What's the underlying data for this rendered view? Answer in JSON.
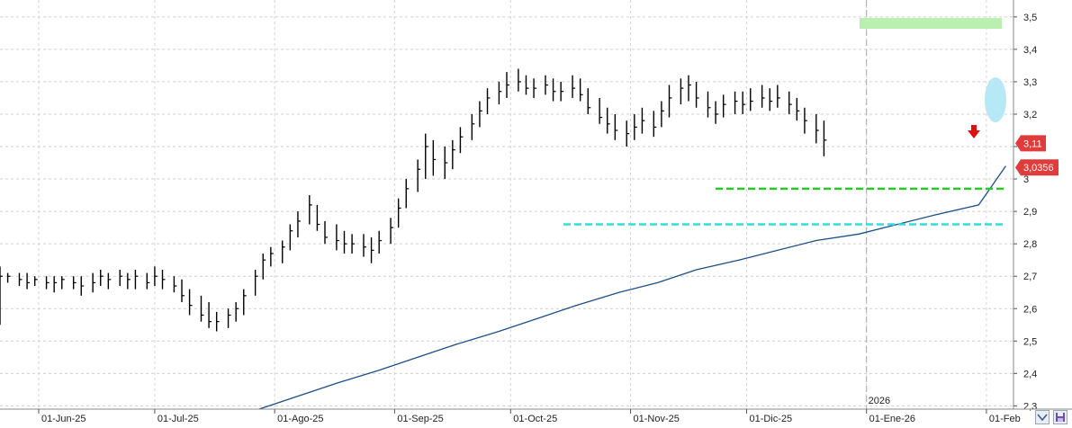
{
  "chart_data": {
    "type": "ohlc",
    "title": "",
    "xlabel": "",
    "ylabel": "",
    "ylim": [
      2.29,
      3.53
    ],
    "y_ticks": [
      "3,5",
      "3,4",
      "3,3",
      "3,2",
      "3,1",
      "3",
      "2,9",
      "2,8",
      "2,7",
      "2,6",
      "2,5",
      "2,4",
      "2,3"
    ],
    "y_tick_values": [
      3.5,
      3.4,
      3.3,
      3.2,
      3.1,
      3.0,
      2.9,
      2.8,
      2.7,
      2.6,
      2.5,
      2.4,
      2.3
    ],
    "x_ticks": [
      "01-Jun-25",
      "01-Jul-25",
      "01-Ago-25",
      "01-Sep-25",
      "01-Oct-25",
      "01-Nov-25",
      "01-Dic-25",
      "01-Ene-26",
      "01-Feb"
    ],
    "x_tick_dates": [
      "2025-06-01",
      "2025-07-01",
      "2025-08-01",
      "2025-09-01",
      "2025-10-01",
      "2025-11-01",
      "2025-12-01",
      "2026-01-01",
      "2026-02-01"
    ],
    "x_range": [
      "2025-05-22",
      "2026-02-08"
    ],
    "year_marker": {
      "label": "2026",
      "date": "2026-01-01"
    },
    "series": [
      {
        "type": "ohlc",
        "color": "#000000",
        "values": [
          [
            "2025-05-22",
            2.73,
            2.55,
            2.7
          ],
          [
            "2025-05-24",
            2.71,
            2.68,
            2.7
          ],
          [
            "2025-05-27",
            2.71,
            2.67,
            2.69
          ],
          [
            "2025-05-29",
            2.71,
            2.66,
            2.68
          ],
          [
            "2025-05-31",
            2.7,
            2.67,
            2.69
          ],
          [
            "2025-06-03",
            2.7,
            2.66,
            2.68
          ],
          [
            "2025-06-05",
            2.7,
            2.65,
            2.68
          ],
          [
            "2025-06-07",
            2.7,
            2.66,
            2.69
          ],
          [
            "2025-06-10",
            2.7,
            2.66,
            2.68
          ],
          [
            "2025-06-12",
            2.7,
            2.64,
            2.67
          ],
          [
            "2025-06-15",
            2.71,
            2.65,
            2.68
          ],
          [
            "2025-06-17",
            2.72,
            2.67,
            2.7
          ],
          [
            "2025-06-19",
            2.71,
            2.66,
            2.69
          ],
          [
            "2025-06-22",
            2.72,
            2.67,
            2.7
          ],
          [
            "2025-06-24",
            2.71,
            2.66,
            2.69
          ],
          [
            "2025-06-26",
            2.72,
            2.66,
            2.7
          ],
          [
            "2025-06-29",
            2.71,
            2.66,
            2.68
          ],
          [
            "2025-07-01",
            2.73,
            2.67,
            2.7
          ],
          [
            "2025-07-03",
            2.72,
            2.66,
            2.69
          ],
          [
            "2025-07-06",
            2.7,
            2.65,
            2.67
          ],
          [
            "2025-07-08",
            2.69,
            2.62,
            2.64
          ],
          [
            "2025-07-10",
            2.66,
            2.58,
            2.61
          ],
          [
            "2025-07-13",
            2.64,
            2.56,
            2.58
          ],
          [
            "2025-07-15",
            2.62,
            2.54,
            2.56
          ],
          [
            "2025-07-17",
            2.59,
            2.53,
            2.56
          ],
          [
            "2025-07-20",
            2.6,
            2.54,
            2.58
          ],
          [
            "2025-07-22",
            2.62,
            2.56,
            2.6
          ],
          [
            "2025-07-24",
            2.66,
            2.58,
            2.64
          ],
          [
            "2025-07-27",
            2.72,
            2.64,
            2.7
          ],
          [
            "2025-07-29",
            2.77,
            2.69,
            2.75
          ],
          [
            "2025-07-31",
            2.79,
            2.73,
            2.77
          ],
          [
            "2025-08-03",
            2.81,
            2.74,
            2.79
          ],
          [
            "2025-08-05",
            2.86,
            2.78,
            2.84
          ],
          [
            "2025-08-07",
            2.9,
            2.82,
            2.87
          ],
          [
            "2025-08-10",
            2.95,
            2.86,
            2.92
          ],
          [
            "2025-08-12",
            2.92,
            2.84,
            2.86
          ],
          [
            "2025-08-14",
            2.87,
            2.8,
            2.82
          ],
          [
            "2025-08-17",
            2.86,
            2.78,
            2.81
          ],
          [
            "2025-08-19",
            2.84,
            2.77,
            2.8
          ],
          [
            "2025-08-21",
            2.83,
            2.77,
            2.8
          ],
          [
            "2025-08-24",
            2.83,
            2.76,
            2.79
          ],
          [
            "2025-08-26",
            2.82,
            2.74,
            2.78
          ],
          [
            "2025-08-28",
            2.84,
            2.77,
            2.81
          ],
          [
            "2025-08-31",
            2.88,
            2.8,
            2.85
          ],
          [
            "2025-09-02",
            2.94,
            2.85,
            2.91
          ],
          [
            "2025-09-04",
            3.0,
            2.91,
            2.97
          ],
          [
            "2025-09-07",
            3.06,
            2.96,
            3.03
          ],
          [
            "2025-09-09",
            3.14,
            3.0,
            3.1
          ],
          [
            "2025-09-11",
            3.12,
            3.01,
            3.06
          ],
          [
            "2025-09-14",
            3.1,
            3.0,
            3.05
          ],
          [
            "2025-09-16",
            3.12,
            3.03,
            3.09
          ],
          [
            "2025-09-18",
            3.16,
            3.08,
            3.13
          ],
          [
            "2025-09-21",
            3.2,
            3.12,
            3.17
          ],
          [
            "2025-09-23",
            3.24,
            3.16,
            3.21
          ],
          [
            "2025-09-25",
            3.28,
            3.2,
            3.25
          ],
          [
            "2025-09-28",
            3.3,
            3.23,
            3.27
          ],
          [
            "2025-09-30",
            3.33,
            3.25,
            3.29
          ],
          [
            "2025-10-03",
            3.34,
            3.27,
            3.3
          ],
          [
            "2025-10-05",
            3.32,
            3.26,
            3.28
          ],
          [
            "2025-10-07",
            3.31,
            3.25,
            3.28
          ],
          [
            "2025-10-10",
            3.32,
            3.26,
            3.29
          ],
          [
            "2025-10-12",
            3.31,
            3.24,
            3.27
          ],
          [
            "2025-10-14",
            3.3,
            3.24,
            3.27
          ],
          [
            "2025-10-17",
            3.32,
            3.25,
            3.28
          ],
          [
            "2025-10-19",
            3.31,
            3.24,
            3.26
          ],
          [
            "2025-10-21",
            3.28,
            3.2,
            3.22
          ],
          [
            "2025-10-24",
            3.25,
            3.17,
            3.19
          ],
          [
            "2025-10-26",
            3.22,
            3.14,
            3.17
          ],
          [
            "2025-10-28",
            3.2,
            3.12,
            3.15
          ],
          [
            "2025-10-31",
            3.18,
            3.1,
            3.14
          ],
          [
            "2025-11-02",
            3.2,
            3.12,
            3.16
          ],
          [
            "2025-11-04",
            3.22,
            3.14,
            3.18
          ],
          [
            "2025-11-07",
            3.21,
            3.13,
            3.16
          ],
          [
            "2025-11-09",
            3.24,
            3.16,
            3.21
          ],
          [
            "2025-11-11",
            3.29,
            3.19,
            3.25
          ],
          [
            "2025-11-14",
            3.31,
            3.23,
            3.28
          ],
          [
            "2025-11-16",
            3.32,
            3.24,
            3.29
          ],
          [
            "2025-11-18",
            3.3,
            3.22,
            3.25
          ],
          [
            "2025-11-21",
            3.27,
            3.19,
            3.22
          ],
          [
            "2025-11-23",
            3.24,
            3.17,
            3.2
          ],
          [
            "2025-11-25",
            3.26,
            3.19,
            3.23
          ],
          [
            "2025-11-28",
            3.27,
            3.2,
            3.24
          ],
          [
            "2025-11-30",
            3.27,
            3.2,
            3.23
          ],
          [
            "2025-12-02",
            3.28,
            3.21,
            3.24
          ],
          [
            "2025-12-05",
            3.29,
            3.22,
            3.25
          ],
          [
            "2025-12-07",
            3.28,
            3.21,
            3.24
          ],
          [
            "2025-12-09",
            3.29,
            3.22,
            3.25
          ],
          [
            "2025-12-12",
            3.27,
            3.2,
            3.23
          ],
          [
            "2025-12-14",
            3.25,
            3.18,
            3.21
          ],
          [
            "2025-12-16",
            3.22,
            3.14,
            3.18
          ],
          [
            "2025-12-19",
            3.2,
            3.11,
            3.15
          ],
          [
            "2025-12-21",
            3.18,
            3.07,
            3.12
          ]
        ]
      },
      {
        "type": "line",
        "color": "#1a4f8a",
        "values": [
          [
            "2025-07-28",
            2.29
          ],
          [
            "2025-08-07",
            2.33
          ],
          [
            "2025-08-17",
            2.37
          ],
          [
            "2025-08-28",
            2.41
          ],
          [
            "2025-09-07",
            2.45
          ],
          [
            "2025-09-17",
            2.49
          ],
          [
            "2025-09-28",
            2.53
          ],
          [
            "2025-10-08",
            2.57
          ],
          [
            "2025-10-18",
            2.61
          ],
          [
            "2025-10-29",
            2.65
          ],
          [
            "2025-11-08",
            2.68
          ],
          [
            "2025-11-18",
            2.72
          ],
          [
            "2025-11-29",
            2.75
          ],
          [
            "2025-12-09",
            2.78
          ],
          [
            "2025-12-19",
            2.81
          ],
          [
            "2025-12-30",
            2.83
          ],
          [
            "2026-01-09",
            2.86
          ],
          [
            "2026-01-19",
            2.89
          ],
          [
            "2026-01-30",
            2.92
          ],
          [
            "2026-02-06",
            3.04
          ]
        ]
      }
    ],
    "annotations": [
      {
        "type": "hline",
        "value": 3.48,
        "color": "#b9f0b0",
        "style": "band"
      },
      {
        "type": "hline",
        "value": 2.97,
        "color": "#22cc22",
        "style": "dashed"
      },
      {
        "type": "hline",
        "value": 2.86,
        "color": "#33dddd",
        "style": "dashed"
      },
      {
        "type": "arrow",
        "direction": "down",
        "color": "#e01010"
      },
      {
        "type": "ellipse",
        "color": "#aee6f5"
      }
    ],
    "price_labels": [
      {
        "label": "3,11",
        "value": 3.11,
        "color": "#e03c3c"
      },
      {
        "label": "3,0356",
        "value": 3.0356,
        "color": "#e03c3c"
      }
    ],
    "grid": true
  }
}
